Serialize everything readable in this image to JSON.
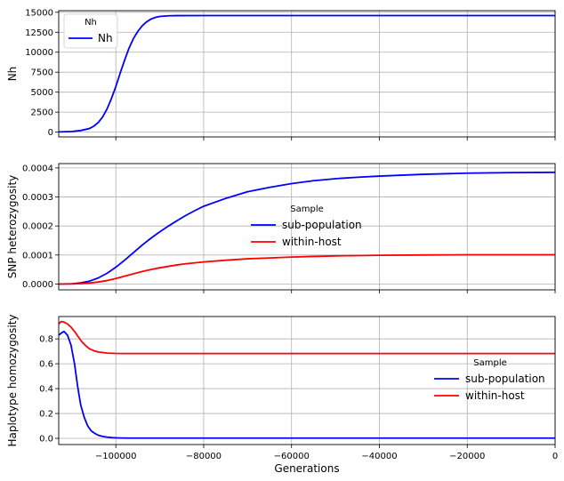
{
  "chart_data": [
    {
      "type": "line",
      "ylabel": "Nh",
      "xlim": [
        -113000,
        0
      ],
      "ylim": [
        -600,
        15200
      ],
      "yticks": [
        0,
        2500,
        5000,
        7500,
        10000,
        12500,
        15000
      ],
      "ytick_labels": [
        "0",
        "2500",
        "5000",
        "7500",
        "10000",
        "12500",
        "15000"
      ],
      "grid": true,
      "legend": {
        "title": "Nh",
        "placement": "top-left",
        "entries": [
          "Nh"
        ]
      },
      "series": [
        {
          "name": "Nh",
          "color": "#0000ff",
          "x": [
            -113000,
            -110000,
            -108000,
            -106000,
            -105000,
            -104000,
            -103000,
            -102000,
            -101000,
            -100000,
            -99000,
            -98000,
            -97000,
            -96000,
            -95000,
            -94000,
            -93000,
            -92000,
            -91000,
            -90000,
            -88000,
            -86000,
            -80000,
            -60000,
            -40000,
            -20000,
            0
          ],
          "y": [
            30,
            80,
            200,
            450,
            750,
            1200,
            1900,
            2900,
            4200,
            5700,
            7400,
            9000,
            10500,
            11700,
            12600,
            13300,
            13800,
            14150,
            14350,
            14480,
            14560,
            14580,
            14590,
            14590,
            14590,
            14590,
            14590
          ]
        }
      ]
    },
    {
      "type": "line",
      "ylabel": "SNP heterozygosity",
      "xlim": [
        -113000,
        0
      ],
      "ylim": [
        -2e-05,
        0.000415
      ],
      "yticks": [
        0,
        0.0001,
        0.0002,
        0.0003,
        0.0004
      ],
      "ytick_labels": [
        "0.0000",
        "0.0001",
        "0.0002",
        "0.0003",
        "0.0004"
      ],
      "grid": true,
      "legend": {
        "title": "Sample",
        "placement": "center",
        "entries": [
          "sub-population",
          "within-host"
        ]
      },
      "series": [
        {
          "name": "sub-population",
          "color": "#0000ff",
          "x": [
            -113000,
            -110000,
            -108000,
            -106000,
            -104000,
            -102000,
            -100000,
            -98000,
            -96000,
            -94000,
            -92000,
            -90000,
            -88000,
            -86000,
            -84000,
            -82000,
            -80000,
            -75000,
            -70000,
            -65000,
            -60000,
            -55000,
            -50000,
            -45000,
            -40000,
            -30000,
            -20000,
            -10000,
            0
          ],
          "y": [
            0,
            1e-06,
            4e-06,
            1e-05,
            2.1e-05,
            3.7e-05,
            5.8e-05,
            8.2e-05,
            0.000108,
            0.000134,
            0.000158,
            0.00018,
            0.0002,
            0.000219,
            0.000237,
            0.000253,
            0.000268,
            0.000295,
            0.000318,
            0.000333,
            0.000346,
            0.000356,
            0.000363,
            0.000368,
            0.000372,
            0.000378,
            0.000382,
            0.000384,
            0.000385
          ]
        },
        {
          "name": "within-host",
          "color": "#ff0000",
          "x": [
            -113000,
            -110000,
            -108000,
            -106000,
            -104000,
            -102000,
            -100000,
            -98000,
            -96000,
            -94000,
            -92000,
            -90000,
            -88000,
            -86000,
            -84000,
            -82000,
            -80000,
            -75000,
            -70000,
            -65000,
            -60000,
            -55000,
            -50000,
            -45000,
            -40000,
            -30000,
            -20000,
            -10000,
            0
          ],
          "y": [
            0,
            5e-07,
            1.5e-06,
            3.5e-06,
            7e-06,
            1.2e-05,
            1.9e-05,
            2.7e-05,
            3.5e-05,
            4.3e-05,
            5e-05,
            5.6e-05,
            6.1e-05,
            6.6e-05,
            7e-05,
            7.3e-05,
            7.6e-05,
            8.2e-05,
            8.7e-05,
            9e-05,
            9.3e-05,
            9.5e-05,
            9.7e-05,
            9.8e-05,
            9.9e-05,
            0.0001,
            0.000101,
            0.000101,
            0.000101
          ]
        }
      ]
    },
    {
      "type": "line",
      "xlabel": "Generations",
      "ylabel": "Haplotype homozygosity",
      "xlim": [
        -113000,
        0
      ],
      "ylim": [
        -0.05,
        0.98
      ],
      "xticks": [
        -100000,
        -80000,
        -60000,
        -40000,
        -20000,
        0
      ],
      "xtick_labels": [
        "−100000",
        "−80000",
        "−60000",
        "−40000",
        "−20000",
        "0"
      ],
      "yticks": [
        0,
        0.2,
        0.4,
        0.6,
        0.8
      ],
      "ytick_labels": [
        "0.0",
        "0.2",
        "0.4",
        "0.6",
        "0.8"
      ],
      "grid": true,
      "legend": {
        "title": "Sample",
        "placement": "center-right",
        "entries": [
          "sub-population",
          "within-host"
        ]
      },
      "series": [
        {
          "name": "sub-population",
          "color": "#0000ff",
          "x": [
            -113000,
            -112300,
            -111800,
            -111000,
            -110200,
            -109400,
            -108700,
            -108000,
            -107200,
            -106400,
            -105600,
            -104800,
            -104000,
            -103000,
            -102000,
            -101000,
            -100000,
            -99000,
            -97000,
            -95000,
            -90000,
            -80000,
            -60000,
            -40000,
            -20000,
            0
          ],
          "y": [
            0.83,
            0.85,
            0.86,
            0.83,
            0.75,
            0.6,
            0.42,
            0.27,
            0.17,
            0.1,
            0.06,
            0.04,
            0.025,
            0.015,
            0.01,
            0.006,
            0.004,
            0.003,
            0.002,
            0.002,
            0.002,
            0.002,
            0.002,
            0.002,
            0.002,
            0.002
          ]
        },
        {
          "name": "within-host",
          "color": "#ff0000",
          "x": [
            -113000,
            -112400,
            -111800,
            -111000,
            -110200,
            -109400,
            -108600,
            -107800,
            -107000,
            -106000,
            -105000,
            -104000,
            -103000,
            -102000,
            -100000,
            -98000,
            -95000,
            -90000,
            -80000,
            -60000,
            -40000,
            -20000,
            0
          ],
          "y": [
            0.92,
            0.94,
            0.935,
            0.92,
            0.895,
            0.86,
            0.82,
            0.78,
            0.75,
            0.72,
            0.705,
            0.695,
            0.69,
            0.686,
            0.683,
            0.682,
            0.682,
            0.682,
            0.682,
            0.682,
            0.682,
            0.682,
            0.682
          ]
        }
      ]
    }
  ]
}
